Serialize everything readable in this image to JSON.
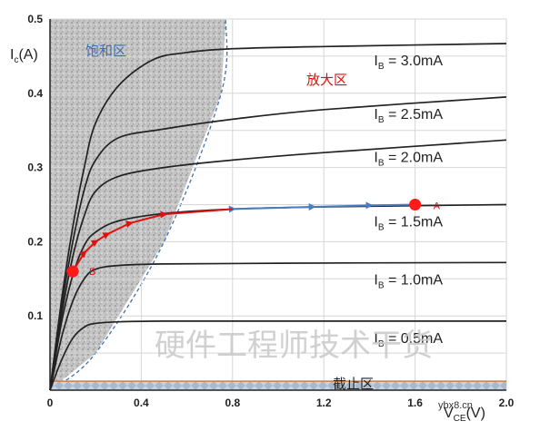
{
  "chart_data": {
    "type": "line",
    "title": "",
    "xlabel": "V",
    "xlabel_sub": "CE",
    "xlabel_unit": "(V)",
    "ylabel": "I",
    "ylabel_sub": "c",
    "ylabel_unit": "(A)",
    "xlim": [
      0,
      2.0
    ],
    "ylim": [
      0,
      0.5
    ],
    "x_ticks": [
      "0",
      "0.4",
      "0.8",
      "1.2",
      "1.6",
      "2.0"
    ],
    "x_tick_values": [
      0,
      0.4,
      0.8,
      1.2,
      1.6,
      2.0
    ],
    "y_ticks": [
      "0.1",
      "0.2",
      "0.3",
      "0.4",
      "0.5"
    ],
    "y_tick_values": [
      0.1,
      0.2,
      0.3,
      0.4,
      0.5
    ],
    "grid": true,
    "series": [
      {
        "name": "IB = 0.5mA",
        "label_main": "I",
        "label_sub": "B",
        "label_rest": " = 0.5mA",
        "points": [
          [
            0,
            0
          ],
          [
            0.05,
            0.04
          ],
          [
            0.1,
            0.07
          ],
          [
            0.15,
            0.085
          ],
          [
            0.2,
            0.09
          ],
          [
            0.3,
            0.092
          ],
          [
            0.5,
            0.093
          ],
          [
            1.0,
            0.093
          ],
          [
            2.0,
            0.093
          ]
        ]
      },
      {
        "name": "IB = 1.0mA",
        "label_main": "I",
        "label_sub": "B",
        "label_rest": " = 1.0mA",
        "points": [
          [
            0,
            0
          ],
          [
            0.05,
            0.07
          ],
          [
            0.1,
            0.12
          ],
          [
            0.15,
            0.15
          ],
          [
            0.2,
            0.163
          ],
          [
            0.3,
            0.168
          ],
          [
            0.5,
            0.17
          ],
          [
            1.0,
            0.171
          ],
          [
            2.0,
            0.172
          ]
        ]
      },
      {
        "name": "IB = 1.5mA",
        "label_main": "I",
        "label_sub": "B",
        "label_rest": " = 1.5mA",
        "points": [
          [
            0,
            0
          ],
          [
            0.05,
            0.09
          ],
          [
            0.1,
            0.155
          ],
          [
            0.15,
            0.195
          ],
          [
            0.2,
            0.213
          ],
          [
            0.3,
            0.228
          ],
          [
            0.5,
            0.238
          ],
          [
            0.8,
            0.244
          ],
          [
            1.2,
            0.247
          ],
          [
            2.0,
            0.25
          ]
        ]
      },
      {
        "name": "IB = 2.0mA",
        "label_main": "I",
        "label_sub": "B",
        "label_rest": " = 2.0mA",
        "points": [
          [
            0,
            0
          ],
          [
            0.05,
            0.1
          ],
          [
            0.1,
            0.18
          ],
          [
            0.15,
            0.235
          ],
          [
            0.2,
            0.268
          ],
          [
            0.3,
            0.288
          ],
          [
            0.5,
            0.3
          ],
          [
            0.8,
            0.31
          ],
          [
            1.2,
            0.32
          ],
          [
            2.0,
            0.337
          ]
        ]
      },
      {
        "name": "IB = 2.5mA",
        "label_main": "I",
        "label_sub": "B",
        "label_rest": " = 2.5mA",
        "points": [
          [
            0,
            0
          ],
          [
            0.05,
            0.11
          ],
          [
            0.1,
            0.2
          ],
          [
            0.15,
            0.27
          ],
          [
            0.2,
            0.31
          ],
          [
            0.3,
            0.34
          ],
          [
            0.5,
            0.352
          ],
          [
            0.8,
            0.365
          ],
          [
            1.2,
            0.378
          ],
          [
            2.0,
            0.395
          ]
        ]
      },
      {
        "name": "IB = 3.0mA",
        "label_main": "I",
        "label_sub": "B",
        "label_rest": " = 3.0mA",
        "points": [
          [
            0,
            0
          ],
          [
            0.05,
            0.12
          ],
          [
            0.1,
            0.22
          ],
          [
            0.15,
            0.3
          ],
          [
            0.2,
            0.36
          ],
          [
            0.3,
            0.41
          ],
          [
            0.45,
            0.445
          ],
          [
            0.6,
            0.455
          ],
          [
            0.8,
            0.46
          ],
          [
            1.2,
            0.463
          ],
          [
            2.0,
            0.467
          ]
        ]
      }
    ],
    "series_label_positions": [
      [
        1.42,
        0.093
      ],
      [
        1.42,
        0.172
      ],
      [
        1.42,
        0.25
      ],
      [
        1.42,
        0.337
      ],
      [
        1.42,
        0.395
      ],
      [
        1.42,
        0.467
      ]
    ],
    "saturation_boundary": [
      [
        0,
        0
      ],
      [
        0.2,
        0.05
      ],
      [
        0.5,
        0.2
      ],
      [
        0.75,
        0.4
      ],
      [
        0.77,
        0.5
      ]
    ],
    "cutoff_band": [
      0,
      0.012
    ],
    "regions": {
      "saturation": "饱和区",
      "active": "放大区",
      "cutoff": "截止区"
    },
    "point_A": {
      "label": "A",
      "x": 1.6,
      "y": 0.25
    },
    "point_B": {
      "label": "B",
      "x": 0.1,
      "y": 0.16
    },
    "path_blue": [
      [
        1.6,
        0.25
      ],
      [
        1.4,
        0.249
      ],
      [
        1.15,
        0.247
      ],
      [
        0.8,
        0.244
      ]
    ],
    "path_red": [
      [
        0.8,
        0.244
      ],
      [
        0.5,
        0.237
      ],
      [
        0.35,
        0.225
      ],
      [
        0.25,
        0.21
      ],
      [
        0.2,
        0.2
      ],
      [
        0.15,
        0.185
      ],
      [
        0.1,
        0.16
      ]
    ],
    "colors": {
      "curve": "#222222",
      "saturation_fill": "#bdbdbd",
      "boundary": "#3f6fb5",
      "active_label": "#e01010",
      "saturation_label": "#3f6fb5",
      "blue_path": "#4a7cc0",
      "red_path": "#e01010",
      "point": "#ff1a1a",
      "cutoff_fill": "#b8c6d6",
      "cutoff_line": "#d97a3a"
    }
  },
  "watermark": "硬件工程师技术干货",
  "site": "ybx8.cn"
}
